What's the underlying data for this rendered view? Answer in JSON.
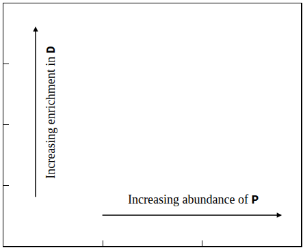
{
  "chart_data": {
    "type": "scatter",
    "x_label": "Increasing abundance of P",
    "y_label": "Increasing enrichment in D",
    "xlim": [
      0,
      3
    ],
    "xticks": [
      1,
      2
    ],
    "ylim": [
      0,
      4
    ],
    "yticks": [
      1,
      2,
      3
    ],
    "tick_labels": false,
    "grid": false
  }
}
